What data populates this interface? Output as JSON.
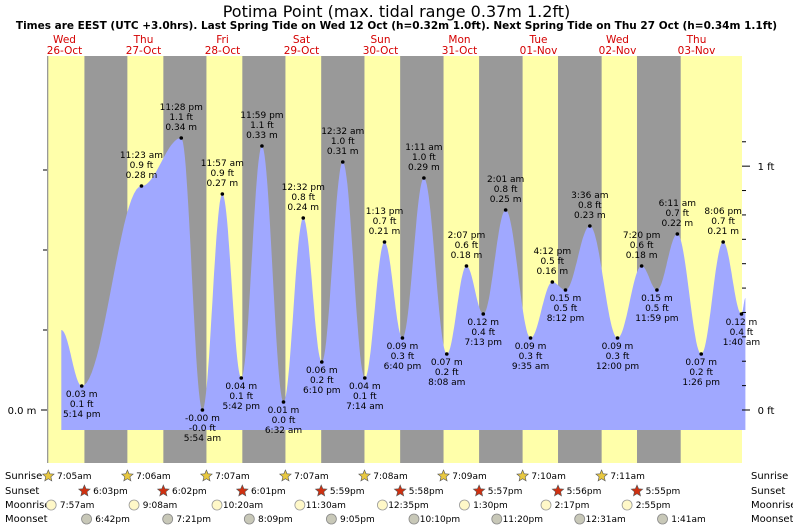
{
  "title": "Potima Point (max. tidal range 0.37m 1.2ft)",
  "subtitle": "Times are EEST (UTC +3.0hrs). Last Spring Tide on Wed 12 Oct (h=0.32m 1.0ft). Next Spring Tide on Thu 27 Oct (h=0.34m 1.1ft)",
  "colors": {
    "day": "#ffffaa",
    "night": "#999999",
    "water": "#a0a8ff",
    "date": "#d40000"
  },
  "chart_data": {
    "type": "area",
    "title": "Potima Point (max. tidal range 0.37m 1.2ft)",
    "y_unit_left": "m",
    "y_unit_right": "ft",
    "ylim": [
      -0.02,
      0.37
    ],
    "left_ticks": [
      "0.0 m"
    ],
    "right_ticks": [
      "0 ft",
      "1 ft"
    ],
    "days": [
      {
        "dow": "Wed",
        "date": "26-Oct"
      },
      {
        "dow": "Thu",
        "date": "27-Oct"
      },
      {
        "dow": "Fri",
        "date": "28-Oct"
      },
      {
        "dow": "Sat",
        "date": "29-Oct"
      },
      {
        "dow": "Sun",
        "date": "30-Oct"
      },
      {
        "dow": "Mon",
        "date": "31-Oct"
      },
      {
        "dow": "Tue",
        "date": "01-Nov"
      },
      {
        "dow": "Wed",
        "date": "02-Nov"
      },
      {
        "dow": "Thu",
        "date": "03-Nov"
      }
    ],
    "tides": [
      {
        "time": "5:14 pm",
        "m": "0.03 m",
        "ft": "0.1 ft",
        "h": 0.03,
        "type": "low"
      },
      {
        "time": "11:23 am",
        "m": "0.28 m",
        "ft": "0.9 ft",
        "h": 0.28,
        "type": "high"
      },
      {
        "time": "11:28 pm",
        "m": "0.34 m",
        "ft": "1.1 ft",
        "h": 0.34,
        "type": "high"
      },
      {
        "time": "5:54 am",
        "m": "-0.00 m",
        "ft": "-0.0 ft",
        "h": 0.0,
        "type": "low"
      },
      {
        "time": "11:57 am",
        "m": "0.27 m",
        "ft": "0.9 ft",
        "h": 0.27,
        "type": "high"
      },
      {
        "time": "5:42 pm",
        "m": "0.04 m",
        "ft": "0.1 ft",
        "h": 0.04,
        "type": "low"
      },
      {
        "time": "11:59 pm",
        "m": "0.33 m",
        "ft": "1.1 ft",
        "h": 0.33,
        "type": "high"
      },
      {
        "time": "6:32 am",
        "m": "0.01 m",
        "ft": "0.0 ft",
        "h": 0.01,
        "type": "low"
      },
      {
        "time": "12:32 pm",
        "m": "0.24 m",
        "ft": "0.8 ft",
        "h": 0.24,
        "type": "high"
      },
      {
        "time": "6:10 pm",
        "m": "0.06 m",
        "ft": "0.2 ft",
        "h": 0.06,
        "type": "low"
      },
      {
        "time": "12:32 am",
        "m": "0.31 m",
        "ft": "1.0 ft",
        "h": 0.31,
        "type": "high"
      },
      {
        "time": "7:14 am",
        "m": "0.04 m",
        "ft": "0.1 ft",
        "h": 0.04,
        "type": "low"
      },
      {
        "time": "1:13 pm",
        "m": "0.21 m",
        "ft": "0.7 ft",
        "h": 0.21,
        "type": "high"
      },
      {
        "time": "6:40 pm",
        "m": "0.09 m",
        "ft": "0.3 ft",
        "h": 0.09,
        "type": "low"
      },
      {
        "time": "1:11 am",
        "m": "0.29 m",
        "ft": "1.0 ft",
        "h": 0.29,
        "type": "high"
      },
      {
        "time": "8:08 am",
        "m": "0.07 m",
        "ft": "0.2 ft",
        "h": 0.07,
        "type": "low"
      },
      {
        "time": "2:07 pm",
        "m": "0.18 m",
        "ft": "0.6 ft",
        "h": 0.18,
        "type": "high"
      },
      {
        "time": "7:13 pm",
        "m": "0.12 m",
        "ft": "0.4 ft",
        "h": 0.12,
        "type": "low"
      },
      {
        "time": "2:01 am",
        "m": "0.25 m",
        "ft": "0.8 ft",
        "h": 0.25,
        "type": "high"
      },
      {
        "time": "9:35 am",
        "m": "0.09 m",
        "ft": "0.3 ft",
        "h": 0.09,
        "type": "low"
      },
      {
        "time": "4:12 pm",
        "m": "0.16 m",
        "ft": "0.5 ft",
        "h": 0.16,
        "type": "high"
      },
      {
        "time": "8:12 pm",
        "m": "0.15 m",
        "ft": "0.5 ft",
        "h": 0.15,
        "type": "low"
      },
      {
        "time": "3:36 am",
        "m": "0.23 m",
        "ft": "0.8 ft",
        "h": 0.23,
        "type": "high"
      },
      {
        "time": "12:00 pm",
        "m": "0.09 m",
        "ft": "0.3 ft",
        "h": 0.09,
        "type": "low"
      },
      {
        "time": "7:20 pm",
        "m": "0.18 m",
        "ft": "0.6 ft",
        "h": 0.18,
        "type": "high"
      },
      {
        "time": "11:59 pm",
        "m": "0.15 m",
        "ft": "0.5 ft",
        "h": 0.15,
        "type": "low"
      },
      {
        "time": "6:11 am",
        "m": "0.22 m",
        "ft": "0.7 ft",
        "h": 0.22,
        "type": "high"
      },
      {
        "time": "1:26 pm",
        "m": "0.07 m",
        "ft": "0.2 ft",
        "h": 0.07,
        "type": "low"
      },
      {
        "time": "8:06 pm",
        "m": "0.21 m",
        "ft": "0.7 ft",
        "h": 0.21,
        "type": "high"
      },
      {
        "time": "1:40 am",
        "m": "0.12 m",
        "ft": "0.4 ft",
        "h": 0.12,
        "type": "low"
      }
    ],
    "astro": {
      "labels": [
        "Sunrise",
        "Sunset",
        "Moonrise",
        "Moonset"
      ],
      "sunrise": [
        "7:05am",
        "7:06am",
        "7:07am",
        "7:07am",
        "7:08am",
        "7:09am",
        "7:10am",
        "7:11am"
      ],
      "sunset": [
        "6:03pm",
        "6:02pm",
        "6:01pm",
        "5:59pm",
        "5:58pm",
        "5:57pm",
        "5:56pm",
        "5:55pm"
      ],
      "moonrise": [
        "7:57am",
        "9:08am",
        "10:20am",
        "11:30am",
        "12:35pm",
        "1:30pm",
        "2:17pm",
        "2:55pm"
      ],
      "moonset": [
        "6:42pm",
        "7:21pm",
        "8:09pm",
        "9:05pm",
        "10:10pm",
        "11:20pm",
        "12:31am",
        "1:41am"
      ]
    }
  }
}
